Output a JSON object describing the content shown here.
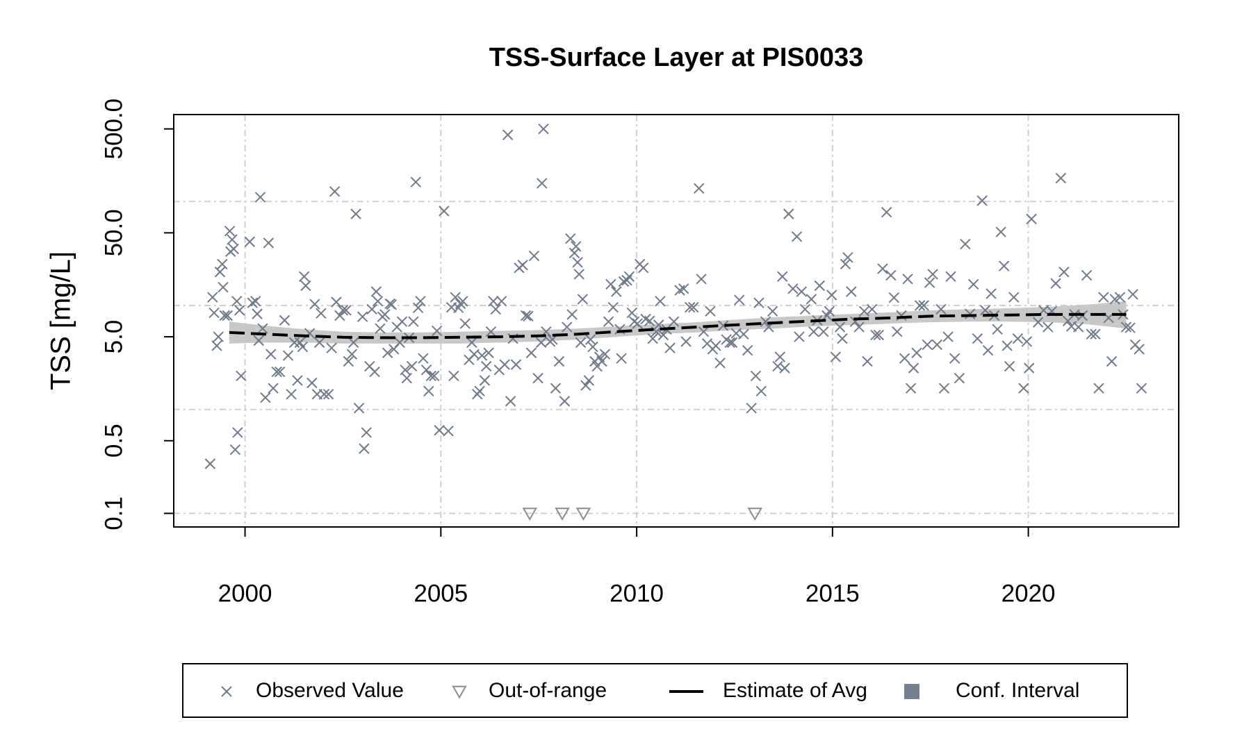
{
  "chart_data": {
    "type": "scatter",
    "title": "TSS-Surface Layer at PIS0033",
    "ylabel": "TSS [mg/L]",
    "log_y": true,
    "grid": true,
    "legend": "bottom",
    "xlim": [
      1998.18,
      2023.84
    ],
    "ylim": [
      0.074,
      687
    ],
    "xticks": [
      2000,
      2005,
      2010,
      2015,
      2020
    ],
    "yticks": [
      {
        "value": 0.1,
        "label": "0.1"
      },
      {
        "value": 0.5,
        "label": "0.5"
      },
      {
        "value": 5,
        "label": "5.0"
      },
      {
        "value": 50,
        "label": "50.0"
      },
      {
        "value": 500,
        "label": "500.0"
      }
    ],
    "ygrid": [
      0.1,
      1,
      10,
      100
    ],
    "series": [
      {
        "name": "Observed Value",
        "type": "scatter",
        "marker": "x",
        "color": "#6e7a8a",
        "x": [
          1999.11,
          1999.17,
          1999.21,
          1999.28,
          1999.32,
          1999.36,
          1999.42,
          1999.44,
          1999.48,
          1999.55,
          1999.61,
          1999.63,
          1999.67,
          1999.71,
          1999.75,
          1999.81,
          1999.79,
          1999.86,
          1999.9,
          2000.12,
          2000.19,
          2000.27,
          2000.31,
          2000.35,
          2000.39,
          2000.45,
          2000.52,
          2000.6,
          2000.66,
          2000.72,
          2000.81,
          2000.89,
          2001.01,
          2001.1,
          2001.18,
          2001.26,
          2001.34,
          2001.4,
          2001.47,
          2001.51,
          2001.55,
          2001.65,
          2001.71,
          2001.78,
          2001.84,
          2001.9,
          2001.94,
          2002.02,
          2002.13,
          2002.21,
          2002.29,
          2002.33,
          2002.42,
          2002.5,
          2002.58,
          2002.64,
          2002.73,
          2002.77,
          2002.83,
          2002.91,
          2003.0,
          2003.04,
          2003.1,
          2003.18,
          2003.24,
          2003.31,
          2003.35,
          2003.39,
          2003.45,
          2003.51,
          2003.57,
          2003.64,
          2003.7,
          2003.74,
          2003.8,
          2003.88,
          2003.95,
          2004.01,
          2004.09,
          2004.13,
          2004.19,
          2004.26,
          2004.3,
          2004.36,
          2004.42,
          2004.48,
          2004.55,
          2004.63,
          2004.69,
          2004.75,
          2004.83,
          2004.9,
          2004.96,
          2005.08,
          2005.19,
          2005.27,
          2005.33,
          2005.37,
          2005.45,
          2005.5,
          2005.56,
          2005.62,
          2005.72,
          2005.79,
          2005.85,
          2005.93,
          2005.99,
          2006.05,
          2006.12,
          2006.16,
          2006.22,
          2006.28,
          2006.34,
          2006.4,
          2006.49,
          2006.55,
          2006.63,
          2006.71,
          2006.78,
          2006.84,
          2006.92,
          2007.0,
          2007.09,
          2007.17,
          2007.23,
          2007.31,
          2007.38,
          2007.48,
          2007.56,
          2007.62,
          2007.58,
          2007.69,
          2007.79,
          2007.85,
          2007.93,
          2008.02,
          2008.16,
          2008.22,
          2008.31,
          2008.35,
          2008.41,
          2008.45,
          2008.49,
          2008.53,
          2008.57,
          2008.62,
          2008.7,
          2008.78,
          2008.82,
          2008.88,
          2008.93,
          2008.99,
          2009.05,
          2009.11,
          2009.19,
          2009.28,
          2009.34,
          2009.4,
          2009.48,
          2009.57,
          2009.61,
          2009.67,
          2009.75,
          2009.81,
          2009.88,
          2009.94,
          2010.02,
          2010.08,
          2010.17,
          2010.23,
          2010.33,
          2010.41,
          2010.5,
          2010.56,
          2010.6,
          2010.68,
          2010.76,
          2010.85,
          2010.95,
          2011.1,
          2011.2,
          2011.26,
          2011.36,
          2011.45,
          2011.59,
          2011.65,
          2011.71,
          2011.8,
          2011.88,
          2011.94,
          2012.02,
          2012.13,
          2012.21,
          2012.29,
          2012.38,
          2012.44,
          2012.54,
          2012.62,
          2012.73,
          2012.83,
          2012.93,
          2013.04,
          2013.12,
          2013.18,
          2013.29,
          2013.37,
          2013.47,
          2013.6,
          2013.66,
          2013.72,
          2013.78,
          2013.88,
          2013.99,
          2014.09,
          2014.15,
          2014.21,
          2014.3,
          2014.46,
          2014.52,
          2014.61,
          2014.67,
          2014.77,
          2014.86,
          2014.92,
          2014.98,
          2015.08,
          2015.19,
          2015.25,
          2015.33,
          2015.39,
          2015.48,
          2015.58,
          2015.68,
          2015.81,
          2015.89,
          2016.01,
          2016.1,
          2016.18,
          2016.28,
          2016.38,
          2016.49,
          2016.57,
          2016.65,
          2016.76,
          2016.84,
          2016.92,
          2017.0,
          2017.07,
          2017.15,
          2017.23,
          2017.33,
          2017.42,
          2017.48,
          2017.56,
          2017.67,
          2017.77,
          2017.85,
          2017.95,
          2018.02,
          2018.12,
          2018.24,
          2018.39,
          2018.51,
          2018.6,
          2018.7,
          2018.82,
          2018.9,
          2018.97,
          2019.05,
          2019.13,
          2019.21,
          2019.3,
          2019.38,
          2019.46,
          2019.52,
          2019.63,
          2019.73,
          2019.88,
          2019.96,
          2020.02,
          2020.08,
          2020.25,
          2020.39,
          2020.5,
          2020.6,
          2020.7,
          2020.83,
          2020.91,
          2021.01,
          2021.1,
          2021.18,
          2021.28,
          2021.38,
          2021.49,
          2021.61,
          2021.71,
          2021.8,
          2021.92,
          2022.05,
          2022.13,
          2022.21,
          2022.34,
          2022.42,
          2022.5,
          2022.6,
          2022.67,
          2022.73,
          2022.83,
          2022.89
        ],
        "values": [
          0.3,
          12,
          8.5,
          4.1,
          5,
          21,
          25,
          15,
          8,
          8,
          52,
          33,
          43,
          35,
          0.41,
          0.6,
          11,
          9,
          2.1,
          41,
          10.6,
          11,
          8.3,
          4.6,
          110,
          6,
          1.3,
          40,
          3.4,
          1.6,
          2.3,
          2.3,
          7.2,
          3.3,
          1.4,
          4.4,
          1.9,
          4.4,
          4,
          19,
          15.5,
          5.4,
          1.8,
          10.3,
          1.4,
          4.4,
          8.4,
          1.4,
          1.4,
          3.9,
          125,
          10.8,
          8,
          9,
          9,
          2.9,
          3.4,
          4.4,
          76,
          1.03,
          7.8,
          0.42,
          0.6,
          2.6,
          9.2,
          2.3,
          13.6,
          11,
          6,
          7.8,
          8.2,
          3.5,
          10.4,
          10.2,
          3.8,
          6.2,
          4.4,
          7,
          2.4,
          2,
          4.9,
          2.6,
          7,
          154,
          9.5,
          11,
          3.1,
          2.4,
          1.5,
          2.1,
          2.1,
          5.7,
          0.63,
          81,
          0.62,
          9.6,
          2.1,
          12,
          9.5,
          10.4,
          11,
          6.7,
          3,
          4.4,
          3.4,
          1.4,
          1.5,
          3.3,
          1.9,
          2.6,
          3.5,
          5.6,
          11,
          9.2,
          2.4,
          11,
          2.7,
          438,
          1.2,
          4.8,
          2.7,
          23,
          24.5,
          8,
          7.9,
          3.5,
          30,
          2,
          4.4,
          500,
          150,
          5.6,
          4.5,
          4.7,
          1.6,
          2.9,
          1.2,
          6.2,
          44,
          8.2,
          32,
          37,
          26,
          20,
          4.4,
          11.5,
          1.7,
          1.9,
          4.7,
          4,
          2.9,
          2.6,
          3.2,
          2.9,
          3.4,
          7,
          16,
          9.6,
          13.6,
          5.9,
          3.1,
          17,
          17.5,
          19,
          8.5,
          7,
          6.7,
          25,
          23,
          7.4,
          7.1,
          4.8,
          5.6,
          6.5,
          11,
          5.2,
          5.9,
          3.9,
          7,
          14,
          14.5,
          4.5,
          9.6,
          9.6,
          134,
          18,
          5.6,
          4.3,
          8.8,
          3.8,
          4.1,
          2.8,
          6.4,
          4.7,
          4.4,
          4.4,
          5.4,
          11.3,
          5.3,
          3.7,
          1.03,
          2.1,
          10.6,
          1.5,
          7,
          6.2,
          8.8,
          2.6,
          3.2,
          19,
          2.5,
          76,
          14.5,
          46,
          5,
          13.6,
          9.2,
          11.5,
          5.6,
          7.2,
          15.5,
          5.6,
          8,
          8.8,
          12.6,
          3.2,
          6.2,
          4.8,
          25,
          29,
          13.6,
          7,
          6.2,
          8.8,
          2.9,
          9.2,
          5.2,
          5.2,
          22.6,
          79,
          19.5,
          11.9,
          5.6,
          8,
          3.1,
          18,
          1.6,
          2.5,
          3.5,
          10,
          10,
          4.2,
          16.6,
          20,
          4.2,
          9.2,
          1.6,
          5,
          19,
          3.1,
          2,
          39,
          8.3,
          16,
          4.8,
          102,
          9,
          3.7,
          13,
          8,
          5.9,
          51,
          24,
          4.1,
          2.6,
          12,
          4.8,
          1.6,
          4.5,
          2.5,
          68,
          6.9,
          9,
          6.2,
          8.8,
          16.3,
          168,
          21,
          7.1,
          6.3,
          8.2,
          6.2,
          8,
          19.5,
          5.3,
          5.3,
          1.6,
          12,
          7.6,
          2.9,
          11.5,
          12,
          8.2,
          6.2,
          6.1,
          12.8,
          4.2,
          3.8,
          1.6
        ]
      },
      {
        "name": "Out-of-range",
        "type": "scatter",
        "marker": "triangle",
        "color": "#8c8c8c",
        "x": [
          2007.27,
          2008.1,
          2008.64,
          2013.02
        ],
        "values": [
          0.1,
          0.1,
          0.1,
          0.1
        ]
      },
      {
        "name": "Estimate of Avg",
        "type": "line",
        "color": "#000000",
        "x": [
          1999.6,
          2000.5,
          2001.5,
          2002.5,
          2003.5,
          2004.5,
          2005.5,
          2006.5,
          2007.5,
          2008.5,
          2009.5,
          2010.5,
          2011.5,
          2012.5,
          2013.5,
          2014.5,
          2015.5,
          2016.5,
          2017.5,
          2018.5,
          2019.5,
          2020.5,
          2021.5,
          2022.5
        ],
        "values": [
          5.5,
          5.3,
          5.1,
          4.95,
          4.9,
          4.9,
          4.95,
          5.0,
          5.1,
          5.3,
          5.6,
          5.9,
          6.2,
          6.5,
          6.8,
          7.1,
          7.4,
          7.6,
          7.9,
          8.0,
          8.1,
          8.2,
          8.2,
          8.2
        ]
      },
      {
        "name": "Conf. Interval",
        "type": "band",
        "color": "#c8c8c8",
        "legend_color": "#737f8e",
        "x": [
          1999.6,
          2000.5,
          2001.5,
          2002.5,
          2003.5,
          2004.5,
          2005.5,
          2006.5,
          2007.5,
          2008.5,
          2009.5,
          2010.5,
          2011.5,
          2012.5,
          2013.5,
          2014.5,
          2015.5,
          2016.5,
          2017.5,
          2018.5,
          2019.5,
          2020.5,
          2021.5,
          2022.5
        ],
        "lower": [
          4.3,
          4.4,
          4.4,
          4.3,
          4.3,
          4.3,
          4.3,
          4.4,
          4.5,
          4.7,
          5.0,
          5.3,
          5.5,
          5.8,
          6.0,
          6.3,
          6.5,
          6.7,
          6.9,
          7.0,
          7.0,
          6.9,
          6.6,
          6.0
        ],
        "upper": [
          7.0,
          6.4,
          5.9,
          5.6,
          5.5,
          5.5,
          5.6,
          5.7,
          5.8,
          6.0,
          6.3,
          6.6,
          6.9,
          7.3,
          7.7,
          8.0,
          8.3,
          8.6,
          9.0,
          9.2,
          9.4,
          9.7,
          10.2,
          11.0
        ]
      }
    ]
  }
}
